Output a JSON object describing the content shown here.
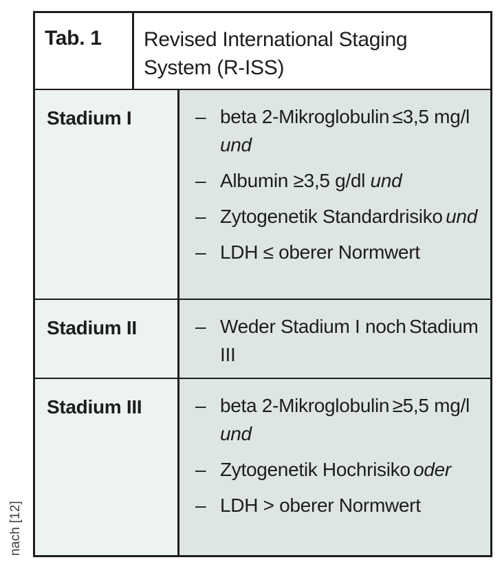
{
  "caption": "nach [12]",
  "bullet": "–",
  "colors": {
    "border": "#1d1d1b",
    "text": "#1d1d1b",
    "header_bg": "#ffffff",
    "label_column_bg": "#edf3f1",
    "criteria_column_bg": "#dde6e3",
    "caption_text": "#3d3d3c"
  },
  "header": {
    "tab_label": "Tab. 1",
    "title_line1": "Revised International Staging",
    "title_line2": "System (R-ISS)"
  },
  "rows": [
    {
      "label": "Stadium I",
      "items": [
        {
          "l1": "beta 2-Mikroglobulin",
          "l2": "≤3,5 mg/l ",
          "l2_italic": "und"
        },
        {
          "l1": "Albumin ≥3,5 g/dl ",
          "l1_italic": "und"
        },
        {
          "l1": "Zytogenetik Standardrisiko",
          "l2_italic": "und"
        },
        {
          "l1": "LDH ≤ oberer Normwert"
        }
      ]
    },
    {
      "label": "Stadium II",
      "items": [
        {
          "l1": "Weder Stadium I noch",
          "l2": "Stadium III"
        }
      ]
    },
    {
      "label": "Stadium III",
      "items": [
        {
          "l1": "beta 2-Mikroglobulin",
          "l2": "≥5,5 mg/l ",
          "l2_italic": "und"
        },
        {
          "l1": "Zytogenetik Hochrisiko",
          "l2_italic": "oder"
        },
        {
          "l1": "LDH > oberer Normwert"
        }
      ]
    }
  ]
}
